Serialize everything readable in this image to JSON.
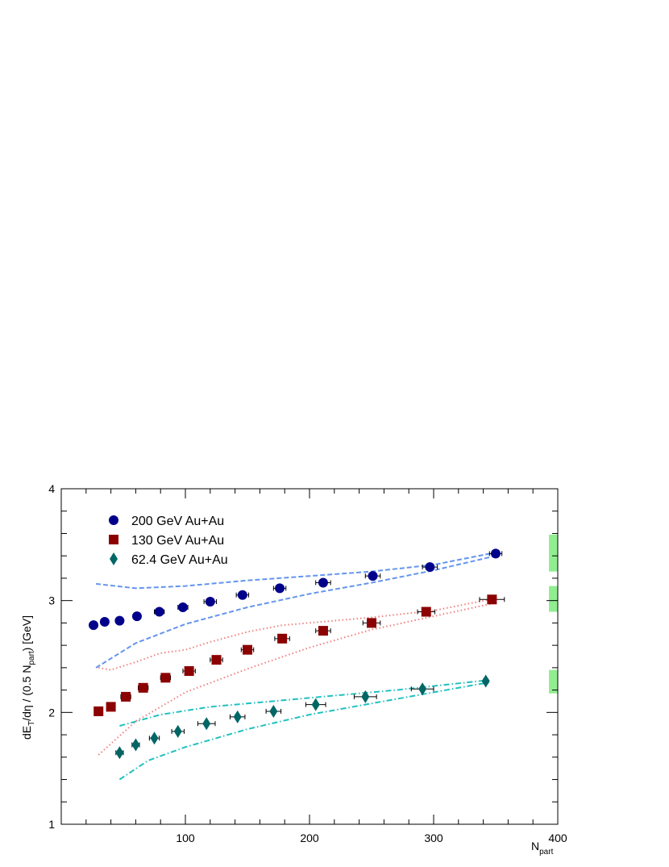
{
  "chart_data": {
    "type": "scatter",
    "title": "",
    "xlabel": "N",
    "xlabel_sub": "part",
    "ylabel_parts": [
      "dE",
      "T",
      "/dη / (0.5 N",
      "part",
      ") [GeV]"
    ],
    "xlim": [
      0,
      400
    ],
    "ylim": [
      1,
      4
    ],
    "x_ticks": [
      "100",
      "200",
      "300",
      "400"
    ],
    "y_ticks": [
      "1",
      "2",
      "3",
      "4"
    ],
    "grid": false,
    "legend_position": "top-left",
    "series": [
      {
        "name": "200 GeV Au+Au",
        "marker": "circle",
        "color": "#00008b",
        "x": [
          26,
          35,
          47,
          61,
          79,
          98,
          120,
          146,
          176,
          211,
          251,
          297,
          350
        ],
        "y": [
          2.78,
          2.81,
          2.82,
          2.86,
          2.9,
          2.94,
          2.99,
          3.05,
          3.11,
          3.16,
          3.22,
          3.3,
          3.42
        ],
        "xerr": [
          3,
          3,
          3,
          3,
          4,
          4,
          5,
          5,
          5,
          6,
          6,
          6,
          5
        ]
      },
      {
        "name": "130 GeV Au+Au",
        "marker": "square",
        "color": "#8b0000",
        "x": [
          30,
          40,
          52,
          66,
          84,
          103,
          125,
          150,
          178,
          211,
          250,
          294,
          347
        ],
        "y": [
          2.01,
          2.05,
          2.14,
          2.22,
          2.31,
          2.37,
          2.47,
          2.56,
          2.66,
          2.73,
          2.8,
          2.9,
          3.01
        ],
        "xerr": [
          3,
          3,
          4,
          4,
          4,
          5,
          5,
          5,
          6,
          6,
          7,
          7,
          10
        ]
      },
      {
        "name": "62.4 GeV Au+Au",
        "marker": "diamond",
        "color": "#006666",
        "x": [
          47,
          60,
          75,
          94,
          117,
          142,
          171,
          205,
          245,
          291,
          342
        ],
        "y": [
          1.64,
          1.71,
          1.77,
          1.83,
          1.9,
          1.96,
          2.01,
          2.07,
          2.14,
          2.21,
          2.28
        ],
        "xerr": [
          3,
          3,
          4,
          5,
          7,
          6,
          6,
          8,
          9,
          9,
          2
        ]
      }
    ],
    "bands": [
      {
        "color": "#6495ed",
        "style": "dashed",
        "upper": {
          "x": [
            28,
            60,
            100,
            150,
            200,
            250,
            300,
            350
          ],
          "y": [
            3.15,
            3.11,
            3.13,
            3.18,
            3.22,
            3.26,
            3.32,
            3.43
          ]
        },
        "lower": {
          "x": [
            28,
            60,
            100,
            150,
            200,
            250,
            300,
            350
          ],
          "y": [
            2.4,
            2.62,
            2.79,
            2.94,
            3.06,
            3.16,
            3.27,
            3.4
          ]
        }
      },
      {
        "color": "#f08080",
        "style": "dotted",
        "upper": {
          "x": [
            30,
            40,
            60,
            80,
            100,
            120,
            150,
            178,
            210,
            250,
            300,
            350
          ],
          "y": [
            2.4,
            2.38,
            2.45,
            2.53,
            2.56,
            2.63,
            2.72,
            2.78,
            2.81,
            2.85,
            2.91,
            3.02
          ]
        },
        "lower": {
          "x": [
            30,
            60,
            100,
            150,
            200,
            250,
            300,
            350
          ],
          "y": [
            1.62,
            1.92,
            2.18,
            2.39,
            2.58,
            2.74,
            2.86,
            2.98
          ]
        }
      },
      {
        "color": "#20c0c0",
        "style": "dashdot",
        "upper": {
          "x": [
            47,
            80,
            120,
            170,
            220,
            270,
            345
          ],
          "y": [
            1.88,
            1.98,
            2.05,
            2.1,
            2.15,
            2.2,
            2.29
          ]
        },
        "lower": {
          "x": [
            47,
            70,
            100,
            150,
            200,
            250,
            300,
            345
          ],
          "y": [
            1.4,
            1.57,
            1.69,
            1.85,
            1.98,
            2.08,
            2.18,
            2.27
          ]
        }
      }
    ],
    "sys_boxes": [
      {
        "y_low": 3.26,
        "y_high": 3.59,
        "color": "#90ee90"
      },
      {
        "y_low": 2.9,
        "y_high": 3.13,
        "color": "#90ee90"
      },
      {
        "y_low": 2.17,
        "y_high": 2.38,
        "color": "#90ee90"
      }
    ]
  }
}
